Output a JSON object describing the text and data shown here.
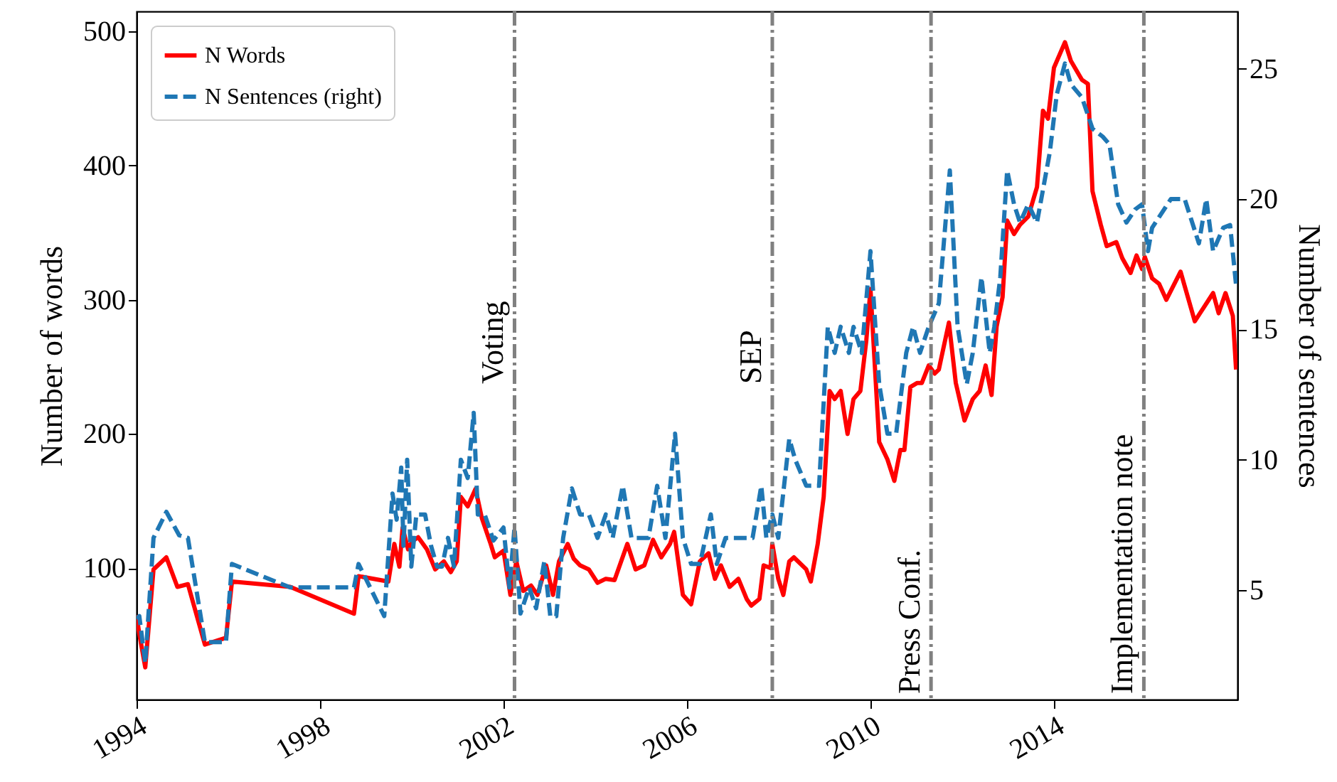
{
  "chart_data": {
    "type": "line",
    "ylabel": "Number of words",
    "y2label": "Number of sentences",
    "xlim": [
      1994,
      2018
    ],
    "xticks": [
      1994,
      1998,
      2002,
      2006,
      2010,
      2014
    ],
    "ylim": [
      2,
      515
    ],
    "yticks": [
      100,
      200,
      300,
      400,
      500
    ],
    "y2lim": [
      0.8,
      27.2
    ],
    "y2ticks": [
      5,
      10,
      15,
      20,
      25
    ],
    "grid": false,
    "legend": "top left",
    "marker": "none",
    "series": [
      {
        "name": "N Words",
        "color": "#ff0000",
        "line_style": "solid",
        "x": [
          1994.0,
          1994.06,
          1994.19,
          1994.37,
          1994.65,
          1994.89,
          1995.12,
          1995.49,
          1995.95,
          1996.08,
          1997.35,
          1998.74,
          1998.84,
          1999.49,
          1999.62,
          1999.73,
          1999.8,
          1999.92,
          2000.01,
          2000.14,
          2000.33,
          2000.51,
          2000.7,
          2000.85,
          2000.98,
          2001.07,
          2001.22,
          2001.39,
          2001.53,
          2001.72,
          2001.81,
          2002.0,
          2002.15,
          2002.28,
          2002.43,
          2002.6,
          2002.74,
          2002.93,
          2003.08,
          2003.21,
          2003.4,
          2003.53,
          2003.67,
          2003.86,
          2004.05,
          2004.23,
          2004.42,
          2004.7,
          2004.88,
          2005.07,
          2005.26,
          2005.44,
          2005.63,
          2005.72,
          2005.91,
          2006.09,
          2006.28,
          2006.47,
          2006.61,
          2006.74,
          2006.93,
          2007.12,
          2007.3,
          2007.4,
          2007.58,
          2007.67,
          2007.82,
          2007.86,
          2007.99,
          2008.1,
          2008.23,
          2008.33,
          2008.6,
          2008.7,
          2008.85,
          2008.98,
          2009.11,
          2009.22,
          2009.35,
          2009.5,
          2009.63,
          2009.78,
          2009.91,
          2010.0,
          2010.19,
          2010.37,
          2010.52,
          2010.65,
          2010.74,
          2010.87,
          2011.02,
          2011.12,
          2011.27,
          2011.4,
          2011.49,
          2011.71,
          2011.86,
          2012.05,
          2012.23,
          2012.38,
          2012.51,
          2012.64,
          2012.75,
          2012.88,
          2012.98,
          2013.13,
          2013.26,
          2013.44,
          2013.63,
          2013.76,
          2013.87,
          2014.0,
          2014.24,
          2014.37,
          2014.61,
          2014.74,
          2014.84,
          2015.02,
          2015.15,
          2015.36,
          2015.49,
          2015.67,
          2015.8,
          2015.92,
          2015.98,
          2016.14,
          2016.29,
          2016.45,
          2016.76,
          2017.07,
          2017.28,
          2017.47,
          2017.59,
          2017.74,
          2017.9,
          2017.97
        ],
        "values": [
          65,
          51,
          26,
          99,
          108,
          86,
          88,
          43,
          48,
          90,
          86,
          66,
          94,
          90,
          118,
          101,
          130,
          114,
          120,
          123,
          114,
          99,
          105,
          97,
          105,
          153,
          146,
          159,
          137,
          118,
          108,
          113,
          80,
          105,
          83,
          87,
          80,
          102,
          80,
          105,
          118,
          107,
          102,
          99,
          89,
          92,
          91,
          118,
          99,
          102,
          121,
          108,
          118,
          127,
          80,
          73,
          105,
          111,
          92,
          102,
          86,
          92,
          77,
          72,
          77,
          102,
          100,
          118,
          92,
          80,
          105,
          108,
          99,
          90,
          118,
          153,
          232,
          226,
          232,
          200,
          226,
          232,
          270,
          308,
          194,
          181,
          165,
          188,
          188,
          235,
          238,
          238,
          251,
          245,
          248,
          283,
          238,
          210,
          226,
          232,
          251,
          229,
          280,
          302,
          359,
          349,
          356,
          362,
          384,
          441,
          435,
          473,
          492,
          478,
          464,
          461,
          381,
          356,
          340,
          343,
          331,
          320,
          333,
          323,
          332,
          316,
          312,
          300,
          321,
          284,
          295,
          305,
          290,
          305,
          288,
          248
        ]
      },
      {
        "name": "N Sentences (right)",
        "color": "#1f77b4",
        "line_style": "dashed",
        "axis": "y2",
        "x": [
          1994.0,
          1994.06,
          1994.19,
          1994.37,
          1994.65,
          1994.93,
          1995.12,
          1995.49,
          1995.95,
          1996.08,
          1997.35,
          1998.74,
          1998.84,
          1999.4,
          1999.58,
          1999.67,
          1999.77,
          1999.82,
          1999.9,
          1999.99,
          2000.1,
          2000.29,
          2000.42,
          2000.55,
          2000.66,
          2000.79,
          2000.92,
          2001.07,
          2001.22,
          2001.35,
          2001.44,
          2001.59,
          2001.78,
          2002.0,
          2002.13,
          2002.24,
          2002.37,
          2002.56,
          2002.71,
          2002.89,
          2003.02,
          2003.15,
          2003.3,
          2003.49,
          2003.67,
          2003.86,
          2004.05,
          2004.23,
          2004.38,
          2004.6,
          2004.79,
          2005.16,
          2005.35,
          2005.53,
          2005.74,
          2005.91,
          2006.09,
          2006.28,
          2006.52,
          2006.65,
          2006.84,
          2007.21,
          2007.43,
          2007.62,
          2007.73,
          2007.86,
          2007.99,
          2008.23,
          2008.36,
          2008.6,
          2008.88,
          2009.07,
          2009.22,
          2009.35,
          2009.53,
          2009.63,
          2009.81,
          2010.0,
          2010.19,
          2010.37,
          2010.56,
          2010.78,
          2010.93,
          2011.08,
          2011.27,
          2011.49,
          2011.73,
          2011.9,
          2012.1,
          2012.23,
          2012.42,
          2012.6,
          2012.7,
          2012.83,
          2012.98,
          2013.13,
          2013.26,
          2013.44,
          2013.63,
          2013.91,
          2014.06,
          2014.24,
          2014.37,
          2014.61,
          2014.84,
          2015.06,
          2015.21,
          2015.4,
          2015.58,
          2015.77,
          2015.92,
          2016.05,
          2016.14,
          2016.55,
          2016.85,
          2017.16,
          2017.32,
          2017.47,
          2017.69,
          2017.84,
          2017.97
        ],
        "values": [
          3.9,
          4.0,
          2.2,
          7.0,
          8.0,
          7.1,
          7.0,
          3.0,
          3.0,
          6.0,
          5.1,
          5.1,
          6.0,
          4.0,
          8.7,
          7.7,
          9.7,
          6.7,
          10.0,
          5.9,
          7.9,
          7.9,
          6.7,
          5.9,
          5.9,
          7.0,
          5.9,
          10.0,
          9.3,
          11.8,
          7.9,
          7.9,
          6.9,
          7.4,
          5.1,
          7.4,
          4.1,
          5.1,
          4.3,
          6.1,
          4.0,
          4.0,
          7.0,
          8.9,
          7.9,
          7.9,
          7.0,
          7.9,
          7.0,
          9.0,
          7.0,
          7.0,
          9.0,
          7.0,
          11.0,
          7.0,
          6.0,
          6.0,
          7.9,
          6.0,
          7.0,
          7.0,
          7.0,
          9.0,
          7.0,
          7.9,
          7.0,
          10.8,
          10.0,
          9.0,
          9.0,
          15.1,
          14.1,
          15.1,
          14.1,
          15.1,
          14.1,
          18.0,
          12.9,
          11.0,
          11.0,
          14.1,
          15.1,
          14.1,
          15.1,
          16.0,
          21.1,
          15.1,
          12.9,
          14.1,
          17.0,
          14.1,
          15.1,
          17.0,
          21.1,
          19.8,
          19.1,
          19.8,
          19.1,
          21.8,
          24.0,
          25.2,
          24.4,
          23.9,
          22.7,
          22.4,
          22.1,
          19.8,
          19.1,
          19.6,
          19.8,
          18.0,
          18.9,
          20.0,
          20.0,
          18.3,
          20.0,
          18.0,
          18.9,
          19.0,
          16.7
        ]
      }
    ],
    "ref_lines": [
      {
        "axis": "x",
        "value": 2002.24,
        "label": "Voting",
        "color": "#808080",
        "line_style": "dashed"
      },
      {
        "axis": "x",
        "value": 2007.86,
        "label": "SEP",
        "color": "#808080",
        "line_style": "dashed"
      },
      {
        "axis": "x",
        "value": 2011.32,
        "label": "Press Conf.",
        "color": "#808080",
        "line_style": "dashed"
      },
      {
        "axis": "x",
        "value": 2015.96,
        "label": "Implementation note",
        "color": "#808080",
        "line_style": "dashed"
      }
    ]
  }
}
